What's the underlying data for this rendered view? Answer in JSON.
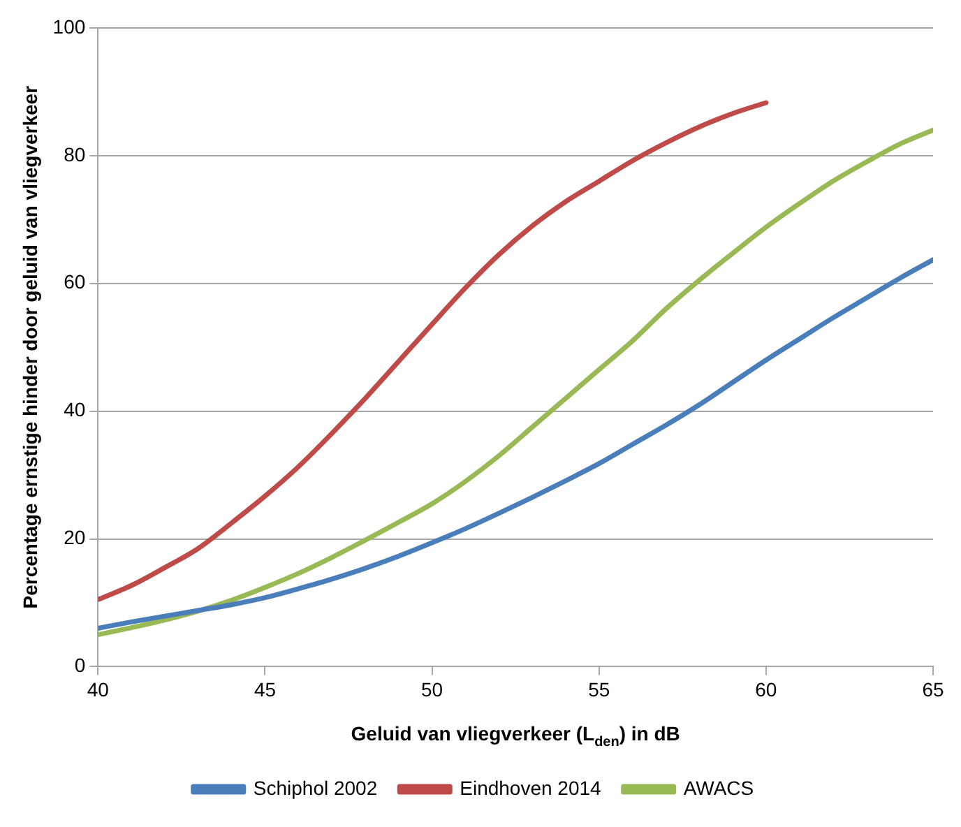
{
  "chart_data": {
    "type": "line",
    "xlabel": "Geluid van vliegverkeer (L$_{den}$) in dB",
    "ylabel": "Percentage ernstige hinder door geluid van vliegverkeer",
    "x": [
      40,
      41,
      42,
      43,
      44,
      45,
      46,
      47,
      48,
      49,
      50,
      51,
      52,
      53,
      54,
      55,
      56,
      57,
      58,
      59,
      60,
      61,
      62,
      63,
      64,
      65
    ],
    "series": [
      {
        "name": "Schiphol 2002",
        "color": "#4a7ebb",
        "values": [
          6,
          7,
          7.9,
          8.8,
          9.7,
          10.8,
          12.2,
          13.7,
          15.4,
          17.3,
          19.4,
          21.6,
          24,
          26.5,
          29.1,
          31.8,
          34.8,
          37.8,
          41,
          44.5,
          48,
          51.3,
          54.6,
          57.7,
          60.8,
          63.7
        ]
      },
      {
        "name": "Eindhoven 2014",
        "color": "#be4b48",
        "x": [
          40,
          41,
          42,
          43,
          44,
          45,
          46,
          47,
          48,
          49,
          50,
          51,
          52,
          53,
          54,
          55,
          56,
          57,
          58,
          59,
          60
        ],
        "values": [
          10.5,
          12.7,
          15.5,
          18.5,
          22.5,
          26.7,
          31.3,
          36.5,
          42,
          47.8,
          53.6,
          59.3,
          64.5,
          69,
          72.8,
          76,
          79.2,
          82,
          84.5,
          86.6,
          88.3
        ]
      },
      {
        "name": "AWACS",
        "color": "#98b954",
        "values": [
          5,
          6.1,
          7.3,
          8.7,
          10.4,
          12.4,
          14.6,
          17.1,
          19.8,
          22.6,
          25.5,
          29,
          33,
          37.5,
          42,
          46.5,
          51,
          56,
          60.5,
          64.7,
          68.8,
          72.5,
          76,
          79,
          81.8,
          84
        ]
      }
    ],
    "xlim": [
      40,
      65
    ],
    "xticks": [
      40,
      45,
      50,
      55,
      60,
      65
    ],
    "ylim": [
      0,
      100
    ],
    "yticks": [
      0,
      20,
      40,
      60,
      80,
      100
    ],
    "grid": "y",
    "legend": "bottom",
    "line_style": "solid"
  }
}
